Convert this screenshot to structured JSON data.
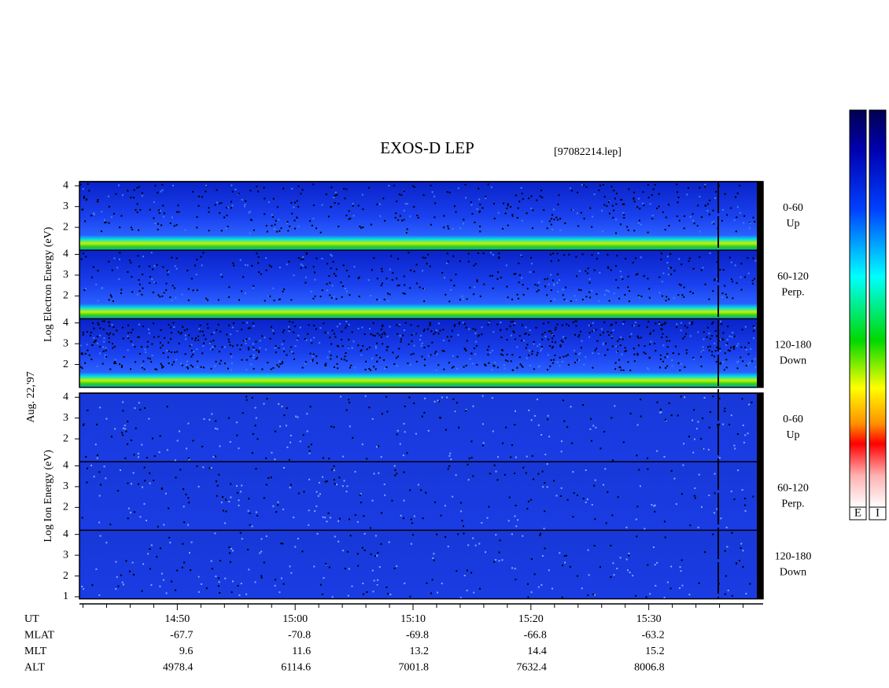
{
  "chart_data": {
    "type": "spectrogram",
    "title": "EXOS-D LEP",
    "subtitle": "[97082214.lep]",
    "date_label": "Aug. 22,'97",
    "xlim": [
      881.7,
      939.7
    ],
    "xticks": [
      {
        "value": 890,
        "label": "14:50"
      },
      {
        "value": 900,
        "label": "15:00"
      },
      {
        "value": 910,
        "label": "15:10"
      },
      {
        "value": 920,
        "label": "15:20"
      },
      {
        "value": 930,
        "label": "15:30"
      }
    ],
    "x_minor_ticks": [
      882,
      884,
      886,
      888,
      892,
      894,
      896,
      898,
      902,
      904,
      906,
      908,
      912,
      914,
      916,
      918,
      922,
      924,
      926,
      928,
      932,
      934,
      936,
      938
    ],
    "panels": [
      {
        "ylabel": "Log Electron Energy (eV)",
        "species": "electron",
        "ylim": [
          0.9,
          4.2
        ],
        "subpanels": [
          {
            "labels": [
              "0-60",
              "Up"
            ],
            "yticks": [
              2,
              3,
              4
            ]
          },
          {
            "labels": [
              "60-120",
              "Perp."
            ],
            "yticks": [
              2,
              3,
              4
            ]
          },
          {
            "labels": [
              "120-180",
              "Down"
            ],
            "yticks": [
              2,
              3,
              4
            ]
          }
        ]
      },
      {
        "ylabel": "Log Ion Energy (eV)",
        "species": "ion",
        "ylim": [
          0.9,
          4.2
        ],
        "subpanels": [
          {
            "labels": [
              "0-60",
              "Up"
            ],
            "yticks": [
              2,
              3,
              4
            ]
          },
          {
            "labels": [
              "60-120",
              "Perp."
            ],
            "yticks": [
              2,
              3,
              4
            ]
          },
          {
            "labels": [
              "120-180",
              "Down"
            ],
            "yticks": [
              1,
              2,
              3,
              4
            ]
          }
        ]
      }
    ],
    "orbit_table": {
      "rows": [
        {
          "name": "UT"
        },
        {
          "name": "MLAT",
          "values": [
            -67.7,
            -70.8,
            -69.8,
            -66.8,
            -63.2
          ]
        },
        {
          "name": "MLT",
          "values": [
            9.6,
            11.6,
            13.2,
            14.4,
            15.2
          ]
        },
        {
          "name": "ALT",
          "values": [
            4978.4,
            6114.6,
            7001.8,
            7632.4,
            8006.8
          ]
        }
      ]
    },
    "colorbar_labels": [
      "E",
      "I"
    ]
  }
}
